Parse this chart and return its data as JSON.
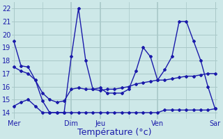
{
  "background_color": "#cde8e8",
  "grid_color": "#a8c8c8",
  "line_color": "#1a1aaa",
  "ylim": [
    13.5,
    22.5
  ],
  "yticks": [
    14,
    15,
    16,
    17,
    18,
    19,
    20,
    21,
    22
  ],
  "xlabel": "Température (°c)",
  "xlabel_fontsize": 9,
  "tick_fontsize": 7,
  "day_labels": [
    "Mer",
    "Dim",
    "Jeu",
    "Ven",
    "Sar"
  ],
  "vline_positions": [
    0,
    8,
    12,
    20,
    28
  ],
  "xlim": [
    -0.3,
    28.3
  ],
  "n_steps": 28,
  "series1_x": [
    0,
    1,
    2,
    3,
    4,
    5,
    6,
    7,
    8,
    9,
    10,
    11,
    12,
    13,
    14,
    15,
    16,
    17,
    18,
    19,
    20,
    21,
    22,
    23,
    24,
    25,
    26,
    27,
    28
  ],
  "series1_y": [
    19.5,
    17.6,
    17.5,
    16.5,
    14.9,
    14.0,
    14.0,
    14.0,
    18.3,
    22.0,
    18.0,
    15.8,
    15.9,
    15.5,
    15.5,
    15.5,
    15.8,
    17.2,
    19.0,
    18.3,
    16.5,
    17.3,
    18.3,
    21.0,
    21.0,
    19.5,
    18.0,
    16.0,
    14.3
  ],
  "series2_x": [
    0,
    1,
    2,
    3,
    4,
    5,
    6,
    7,
    8,
    9,
    10,
    11,
    12,
    13,
    14,
    15,
    16,
    17,
    18,
    19,
    20,
    21,
    22,
    23,
    24,
    25,
    26,
    27,
    28
  ],
  "series2_y": [
    14.5,
    14.8,
    15.0,
    14.5,
    14.0,
    14.0,
    14.0,
    14.0,
    14.0,
    14.0,
    14.0,
    14.0,
    14.0,
    14.0,
    14.0,
    14.0,
    14.0,
    14.0,
    14.0,
    14.0,
    14.0,
    14.2,
    14.2,
    14.2,
    14.2,
    14.2,
    14.2,
    14.2,
    14.3
  ],
  "series3_x": [
    0,
    1,
    2,
    3,
    4,
    5,
    6,
    7,
    8,
    9,
    10,
    11,
    12,
    13,
    14,
    15,
    16,
    17,
    18,
    19,
    20,
    21,
    22,
    23,
    24,
    25,
    26,
    27,
    28
  ],
  "series3_y": [
    17.5,
    17.2,
    17.0,
    16.5,
    15.5,
    15.0,
    14.8,
    14.9,
    15.8,
    15.9,
    15.8,
    15.8,
    15.7,
    15.8,
    15.8,
    15.9,
    16.0,
    16.2,
    16.3,
    16.4,
    16.5,
    16.5,
    16.6,
    16.7,
    16.8,
    16.8,
    16.9,
    17.0,
    17.0
  ]
}
